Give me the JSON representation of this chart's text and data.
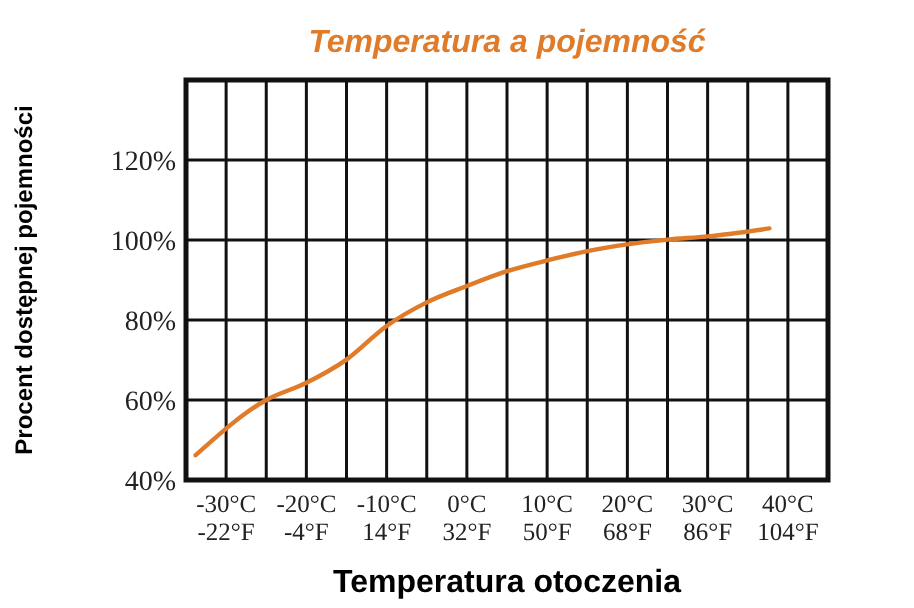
{
  "chart_data": {
    "type": "line",
    "title": "Temperatura a pojemność",
    "xlabel": "Temperatura otoczenia",
    "ylabel": "Procent dostępnej pojemności",
    "x": [
      -33.8,
      -25,
      -20,
      -15,
      -10,
      -5,
      0,
      5,
      10,
      15,
      20,
      25,
      30,
      37.7
    ],
    "series": [
      {
        "color": "#e07b2a",
        "values": [
          46.2,
          60,
          64.3,
          70.1,
          78.5,
          84.4,
          88.5,
          92.2,
          94.9,
          97.2,
          98.9,
          100.1,
          100.9,
          102.9
        ]
      }
    ],
    "xlim": [
      -35,
      45
    ],
    "xticks": [
      {
        "value": -30,
        "label": "-30°C"
      },
      {
        "value": -25,
        "label": null
      },
      {
        "value": -20,
        "label": "-20°C"
      },
      {
        "value": -15,
        "label": null
      },
      {
        "value": -10,
        "label": "-10°C"
      },
      {
        "value": -5,
        "label": null
      },
      {
        "value": 0,
        "label": "0°C"
      },
      {
        "value": 5,
        "label": null
      },
      {
        "value": 10,
        "label": "10°C"
      },
      {
        "value": 15,
        "label": null
      },
      {
        "value": 20,
        "label": "20°C"
      },
      {
        "value": 25,
        "label": null
      },
      {
        "value": 30,
        "label": "30°C"
      },
      {
        "value": 35,
        "label": null
      },
      {
        "value": 40,
        "label": "40°C"
      }
    ],
    "x2lim": [
      -31,
      113
    ],
    "x2ticks": [
      {
        "value": -22,
        "label": "-22°F"
      },
      {
        "value": -4,
        "label": "-4°F"
      },
      {
        "value": 14,
        "label": "14°F"
      },
      {
        "value": 32,
        "label": "32°F"
      },
      {
        "value": 50,
        "label": "50°F"
      },
      {
        "value": 68,
        "label": "68°F"
      },
      {
        "value": 86,
        "label": "86°F"
      },
      {
        "value": 104,
        "label": "104°F"
      }
    ],
    "ylim": [
      40,
      140
    ],
    "yticks": [
      {
        "value": 40,
        "label": "40%"
      },
      {
        "value": 60,
        "label": "60%"
      },
      {
        "value": 80,
        "label": "80%"
      },
      {
        "value": 100,
        "label": "100%"
      },
      {
        "value": 120,
        "label": "120%"
      }
    ],
    "grid": true,
    "marker": "none",
    "line_style": "solid"
  }
}
